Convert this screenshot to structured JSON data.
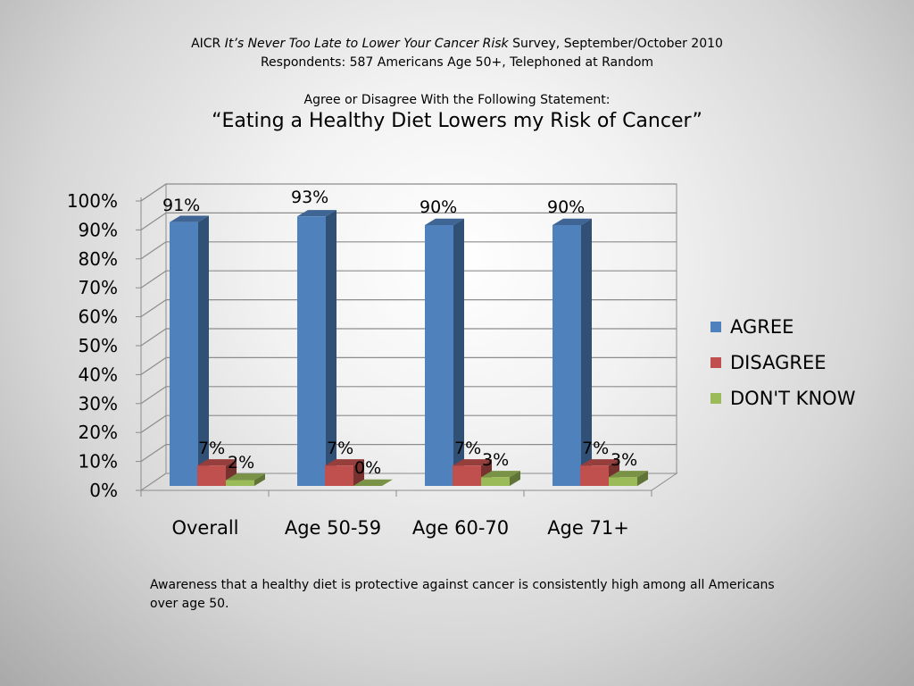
{
  "header": {
    "line1_prefix": "AICR ",
    "line1_italic": "It’s Never Too Late to Lower Your Cancer Risk",
    "line1_suffix": " Survey, September/October 2010",
    "line2": "Respondents: 587 Americans Age 50+, Telephoned at Random",
    "line3": "Agree or Disagree With the Following Statement:",
    "statement": "“Eating a Healthy Diet Lowers my Risk of Cancer”"
  },
  "chart_data": {
    "type": "bar",
    "categories": [
      "Overall",
      "Age 50-59",
      "Age 60-70",
      "Age 71+"
    ],
    "series": [
      {
        "name": "AGREE",
        "values": [
          91,
          93,
          90,
          90
        ],
        "labels": [
          "91%",
          "93%",
          "90%",
          "90%"
        ],
        "color": "#4f81bd"
      },
      {
        "name": "DISAGREE",
        "values": [
          7,
          7,
          7,
          7
        ],
        "labels": [
          "7%",
          "7%",
          "7%",
          "7%"
        ],
        "color": "#c0504d"
      },
      {
        "name": "DON'T KNOW",
        "values": [
          2,
          0,
          3,
          3
        ],
        "labels": [
          "2%",
          "0%",
          "3%",
          "3%"
        ],
        "color": "#9bbb59"
      }
    ],
    "y_ticks": [
      "0%",
      "10%",
      "20%",
      "30%",
      "40%",
      "50%",
      "60%",
      "70%",
      "80%",
      "90%",
      "100%"
    ],
    "ylim": [
      0,
      100
    ],
    "grid": true,
    "legend_position": "right",
    "style": "3d-clustered-column"
  },
  "footnote": "Awareness that a healthy diet is protective against cancer is consistently high among all Americans over age 50."
}
